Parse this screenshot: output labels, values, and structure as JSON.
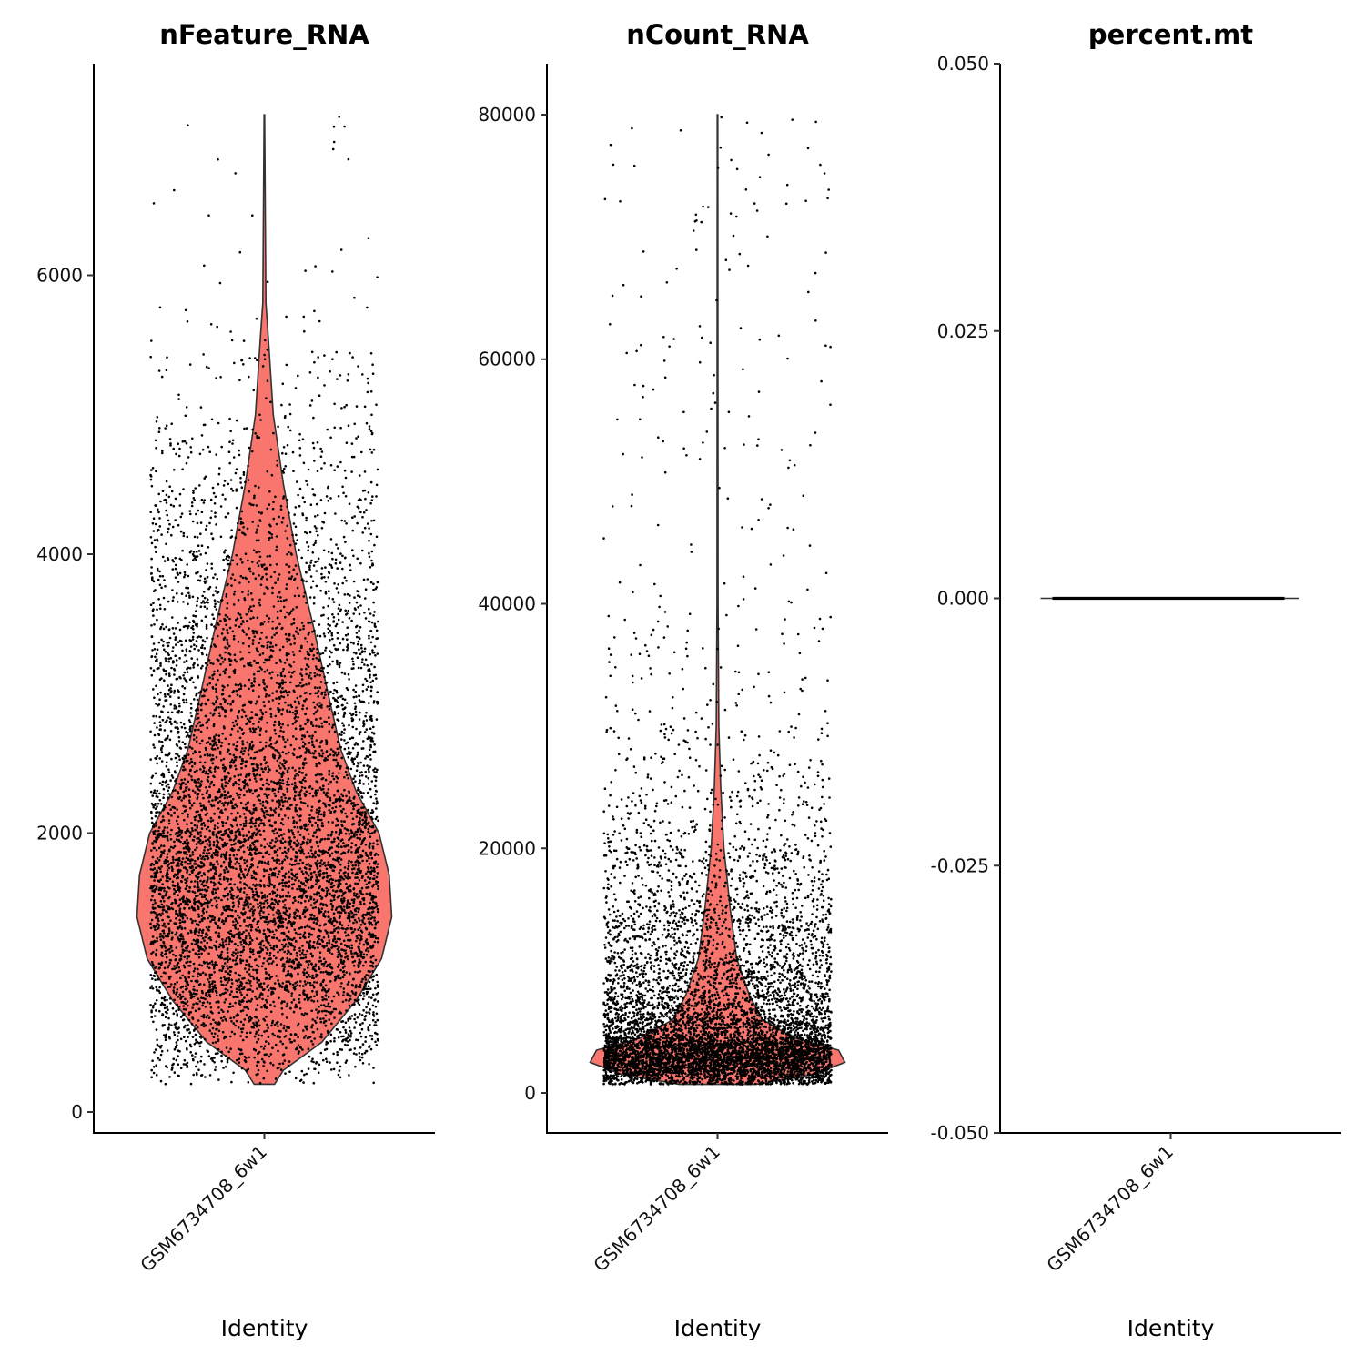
{
  "chart_data": [
    {
      "type": "violin",
      "title": "nFeature_RNA",
      "xlabel": "Identity",
      "ylabel": "",
      "categories": [
        "GSM6734708_6w1"
      ],
      "ylim": [
        -150,
        7517
      ],
      "yticks": [
        0,
        2000,
        4000,
        6000
      ],
      "ytick_labels": [
        "0",
        "2000",
        "4000",
        "6000"
      ],
      "fill": "#F8766D",
      "value_range": [
        200,
        7150
      ],
      "density_profile": [
        [
          200,
          0.08
        ],
        [
          300,
          0.15
        ],
        [
          500,
          0.45
        ],
        [
          800,
          0.72
        ],
        [
          1100,
          0.92
        ],
        [
          1400,
          1.0
        ],
        [
          1700,
          0.98
        ],
        [
          2000,
          0.9
        ],
        [
          2300,
          0.72
        ],
        [
          2600,
          0.6
        ],
        [
          3000,
          0.5
        ],
        [
          3500,
          0.38
        ],
        [
          4000,
          0.25
        ],
        [
          4500,
          0.15
        ],
        [
          5000,
          0.07
        ],
        [
          5500,
          0.035
        ],
        [
          5800,
          0.012
        ],
        [
          7150,
          0.002
        ]
      ],
      "approx_points": 7500
    },
    {
      "type": "violin",
      "title": "nCount_RNA",
      "xlabel": "Identity",
      "ylabel": "",
      "categories": [
        "GSM6734708_6w1"
      ],
      "ylim": [
        -3274,
        84167
      ],
      "yticks": [
        0,
        20000,
        40000,
        60000,
        80000
      ],
      "ytick_labels": [
        "0",
        "20000",
        "40000",
        "60000",
        "80000"
      ],
      "fill": "#F8766D",
      "value_range": [
        700,
        80000
      ],
      "density_profile": [
        [
          700,
          0.3
        ],
        [
          1500,
          0.75
        ],
        [
          2500,
          1.0
        ],
        [
          3500,
          0.95
        ],
        [
          4500,
          0.6
        ],
        [
          6000,
          0.35
        ],
        [
          8000,
          0.25
        ],
        [
          11000,
          0.15
        ],
        [
          15000,
          0.1
        ],
        [
          20000,
          0.05
        ],
        [
          25000,
          0.025
        ],
        [
          30000,
          0.01
        ],
        [
          40000,
          0.004
        ],
        [
          80000,
          0.002
        ]
      ],
      "approx_points": 7500
    },
    {
      "type": "violin",
      "title": "percent.mt",
      "xlabel": "Identity",
      "ylabel": "",
      "categories": [
        "GSM6734708_6w1"
      ],
      "ylim": [
        -0.05,
        0.05
      ],
      "yticks": [
        -0.05,
        -0.025,
        0,
        0.025,
        0.05
      ],
      "ytick_labels": [
        "-0.050",
        "-0.025",
        "0.000",
        "0.025",
        "0.050"
      ],
      "fill": "#F8766D",
      "value_range": [
        0,
        0
      ],
      "density_profile": [],
      "approx_points": 0
    }
  ]
}
